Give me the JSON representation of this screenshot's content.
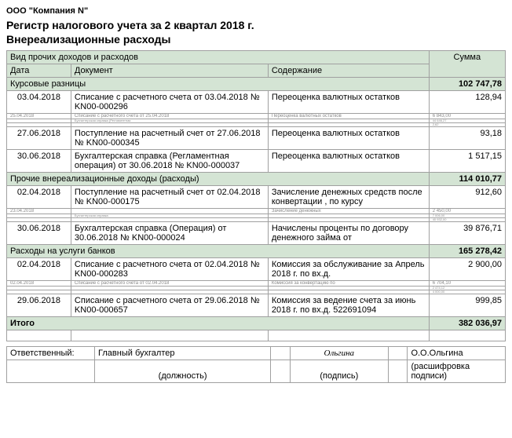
{
  "company": "ООО \"Компания N\"",
  "title": "Регистр налогового учета за 2 квартал 2018 г.",
  "subtitle": "Внереализационные расходы",
  "headers": {
    "group": "Вид прочих доходов и расходов",
    "date": "Дата",
    "doc": "Документ",
    "content": "Содержание",
    "sum": "Сумма"
  },
  "sections": [
    {
      "name": "Курсовые разницы",
      "total": "102 747,78",
      "rows": [
        {
          "date": "03.04.2018",
          "doc": "Списание с расчетного счета от 03.04.2018 № KN00-000296",
          "content": "Переоценка валютных остатков",
          "sum": "128,94"
        }
      ],
      "squished": [
        {
          "date": "25.04.2018",
          "doc": "Списание с расчетного счета от 25.04.2018",
          "content": "Переоценка валютных остатков",
          "sum": "6 843,00"
        },
        {
          "date": "",
          "doc": "Бухгалтерская справка (Регламентная",
          "content": "",
          "sum": "44 646,27"
        },
        {
          "date": "",
          "doc": "",
          "content": "",
          "sum": "2,62"
        }
      ],
      "rows2": [
        {
          "date": "27.06.2018",
          "doc": "Поступление на расчетный счет от 27.06.2018 № KN00-000345",
          "content": "Переоценка валютных остатков",
          "sum": "93,18"
        },
        {
          "date": "30.06.2018",
          "doc": "Бухгалтерская справка (Регламентная операция) от 30.06.2018 № KN00-000037",
          "content": "Переоценка валютных остатков",
          "sum": "1 517,15"
        }
      ]
    },
    {
      "name": "Прочие внереализационные доходы (расходы)",
      "total": "114 010,77",
      "rows": [
        {
          "date": "02.04.2018",
          "doc": "Поступление на расчетный счет от 02.04.2018 № KN00-000175",
          "content": "Зачисление денежных средств после конвертации , по курсу",
          "sum": "912,60"
        }
      ],
      "squished": [
        {
          "date": "23.04.2018",
          "doc": "",
          "content": "Зачисление денежных",
          "sum": "2 450,00"
        },
        {
          "date": "",
          "doc": "Бухгалтерская справка",
          "content": "",
          "sum": "7 006,00"
        },
        {
          "date": "",
          "doc": "",
          "content": "",
          "sum": "40 932,00"
        }
      ],
      "rows2": [
        {
          "date": "30.06.2018",
          "doc": "Бухгалтерская справка (Операция) от 30.06.2018 № KN00-000024",
          "content": "Начислены проценты по договору денежного займа от",
          "sum": "39 876,71"
        }
      ]
    },
    {
      "name": "Расходы на услуги банков",
      "total": "165 278,42",
      "rows": [
        {
          "date": "02.04.2018",
          "doc": "Списание с расчетного счета от 02.04.2018 № KN00-000283",
          "content": "Комиссия за обслуживание за Апрель 2018 г. по вх.д.",
          "sum": "2 900,00"
        }
      ],
      "squished": [
        {
          "date": "02.04.2018",
          "doc": "Списание с расчетного счета от 02.04.2018",
          "content": "Комиссия за конвертацию по",
          "sum": "6 704,10"
        },
        {
          "date": "",
          "doc": "",
          "content": "",
          "sum": "2 474,12"
        },
        {
          "date": "",
          "doc": "",
          "content": "",
          "sum": "4 000,00"
        }
      ],
      "rows2": [
        {
          "date": "29.06.2018",
          "doc": "Списание с расчетного счета от 29.06.2018 № KN00-000657",
          "content": "Комиссия за ведение счета за июнь 2018 г. по вх.д. 522691094",
          "sum": "999,85"
        }
      ]
    }
  ],
  "grand": {
    "label": "Итого",
    "sum": "382 036,97"
  },
  "sig": {
    "role": "Ответственный:",
    "position": "Главный бухгалтер",
    "sign": "Ольгина",
    "name": "О.О.Ольгина",
    "hint_pos": "(должность)",
    "hint_sign": "(подпись)",
    "hint_name": "(расшифровка подписи)"
  }
}
